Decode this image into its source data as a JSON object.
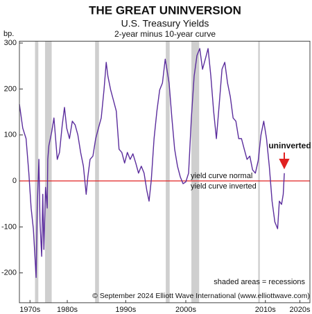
{
  "chart_data": {
    "type": "line",
    "title": "THE GREAT UNINVERSION",
    "subtitle": "U.S. Treasury Yields",
    "subtitle2": "2-year minus 10-year curve",
    "ylabel": "bp.",
    "color": "#5a2c9c",
    "zero_line_color": "#e02020",
    "recession_color": "#cfcfcf",
    "annotation_color": "#e02020",
    "xlim": [
      1977.2,
      2029.4
    ],
    "ylim": [
      -265,
      304
    ],
    "yticks": [
      300,
      200,
      100,
      0,
      -100,
      -200
    ],
    "xticks": [
      {
        "value": 1979.1,
        "label": "1970s"
      },
      {
        "value": 1985.8,
        "label": "1980s"
      },
      {
        "value": 1996.3,
        "label": "1990s"
      },
      {
        "value": 2007.1,
        "label": "2000s"
      },
      {
        "value": 2021.4,
        "label": "2010s"
      },
      {
        "value": 2027.6,
        "label": "2020s"
      }
    ],
    "recessions": [
      [
        1980.0,
        1980.6
      ],
      [
        1981.8,
        1983.0
      ],
      [
        1990.8,
        1991.5
      ],
      [
        2003.5,
        2004.2
      ],
      [
        2008.1,
        2009.5
      ],
      [
        2020.1,
        2020.4
      ]
    ],
    "annotations": {
      "normal": "yield curve normal",
      "inverted": "yield curve inverted",
      "uninverted": "uninverted",
      "shaded": "shaded areas = recessions",
      "source": "© September 2024 Elliott Wave International (www.elliottwave.com)"
    },
    "x": [
      1977.2,
      1977.8,
      1978.4,
      1978.9,
      1979.3,
      1979.7,
      1980.2,
      1980.4,
      1980.7,
      1980.9,
      1981.2,
      1981.4,
      1981.6,
      1981.9,
      1982.2,
      1982.3,
      1982.5,
      1983.0,
      1983.4,
      1983.7,
      1984.0,
      1984.4,
      1984.9,
      1985.3,
      1985.7,
      1986.2,
      1986.7,
      1987.2,
      1987.7,
      1988.2,
      1988.7,
      1989.2,
      1989.5,
      1989.9,
      1990.4,
      1990.9,
      1991.4,
      1991.9,
      1992.4,
      1992.8,
      1993.1,
      1993.6,
      1994.1,
      1994.6,
      1995.1,
      1995.6,
      1996.1,
      1996.6,
      1997.1,
      1997.6,
      1998.1,
      1998.6,
      1999.1,
      1999.6,
      2000.1,
      2000.5,
      2000.9,
      2001.4,
      2001.9,
      2002.4,
      2002.9,
      2003.4,
      2003.7,
      2004.1,
      2004.6,
      2005.1,
      2005.6,
      2006.1,
      2006.6,
      2007.1,
      2007.6,
      2008.1,
      2008.6,
      2009.1,
      2009.6,
      2010.1,
      2010.6,
      2011.1,
      2011.6,
      2012.1,
      2012.6,
      2013.1,
      2013.6,
      2014.1,
      2014.6,
      2015.1,
      2015.6,
      2016.1,
      2016.6,
      2017.1,
      2017.6,
      2018.1,
      2018.6,
      2019.1,
      2019.6,
      2020.1,
      2020.6,
      2021.1,
      2021.6,
      2022.1,
      2022.6,
      2023.1,
      2023.6,
      2023.9,
      2024.3,
      2024.6,
      2024.8
    ],
    "values": [
      167,
      115,
      92,
      17,
      -59,
      -104,
      -210,
      -59,
      47,
      -89,
      -164,
      -29,
      -149,
      -14,
      -59,
      47,
      77,
      107,
      137,
      92,
      47,
      62,
      122,
      160,
      115,
      92,
      130,
      122,
      100,
      62,
      32,
      -29,
      9,
      47,
      54,
      92,
      115,
      137,
      198,
      258,
      228,
      198,
      175,
      152,
      69,
      62,
      39,
      62,
      47,
      59,
      39,
      17,
      32,
      17,
      -21,
      -44,
      2,
      92,
      152,
      198,
      213,
      265,
      243,
      213,
      137,
      69,
      32,
      9,
      -6,
      -2,
      17,
      137,
      228,
      273,
      288,
      243,
      265,
      288,
      228,
      152,
      92,
      167,
      243,
      258,
      213,
      183,
      137,
      130,
      92,
      92,
      69,
      47,
      54,
      24,
      17,
      44,
      100,
      130,
      92,
      32,
      -44,
      -89,
      -104,
      -44,
      -51,
      -29,
      17
    ]
  }
}
